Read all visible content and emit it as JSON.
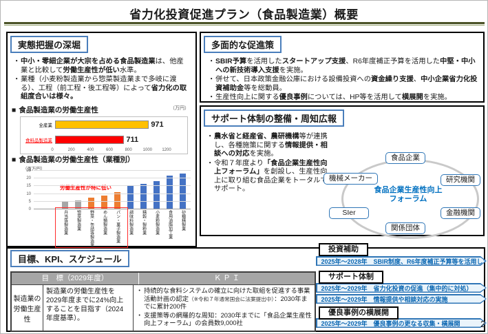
{
  "title": "省力化投資促進プラン（食品製造業）概要",
  "page_number": "2",
  "jittai": {
    "header": "実態把握の深堀",
    "bullets": [
      [
        {
          "t": "中小・零細企業が大宗を占める食品製造業",
          "b": 1
        },
        {
          "t": "は、他産業と比較して"
        },
        {
          "t": "労働生産性が低い",
          "b": 1
        },
        {
          "t": "水準。"
        }
      ],
      [
        {
          "t": "業種（小麦粉製造業から惣菜製造業まで多岐に渡る）、工程（前工程・後工程等）によって"
        },
        {
          "t": "省力化の取組度合いは様々。",
          "b": 1
        }
      ]
    ]
  },
  "sokushin": {
    "header": "多面的な促進策",
    "bullets": [
      [
        {
          "t": "SBIR予算",
          "b": 1
        },
        {
          "t": "を活用した"
        },
        {
          "t": "スタートアップ支援",
          "b": 1
        },
        {
          "t": "、R6年度補正予算を活用した"
        },
        {
          "t": "中堅・中小への新技術導入支援",
          "b": 1
        },
        {
          "t": "を実施。"
        }
      ],
      [
        {
          "t": "併せて、日本政策金融公庫における設備投資への"
        },
        {
          "t": "資金繰り支援",
          "b": 1
        },
        {
          "t": "、"
        },
        {
          "t": "中小企業省力化投資補助金",
          "b": 1
        },
        {
          "t": "等を総動員。"
        }
      ],
      [
        {
          "t": "生産性向上に関する"
        },
        {
          "t": "優良事例",
          "b": 1
        },
        {
          "t": "については、HP等を活用して"
        },
        {
          "t": "横展開",
          "b": 1
        },
        {
          "t": "を実施。"
        }
      ]
    ]
  },
  "support": {
    "header": "サポート体制の整備・周知広報",
    "bullets": [
      [
        {
          "t": "農水省と経産省、農研機構",
          "b": 1
        },
        {
          "t": "等が連携し、各種施策に関する"
        },
        {
          "t": "情報提供・相談への対応",
          "b": 1
        },
        {
          "t": "を実施。"
        }
      ],
      [
        {
          "t": "令和７年度より"
        },
        {
          "t": "「食品企業生産性向上フォーラム」",
          "b": 1
        },
        {
          "t": "を創設し、生産性向上に取り組む食品企業をトータルでサポート。"
        }
      ]
    ],
    "forum": {
      "center_line1": "食品企業生産性向上",
      "center_line2": "フォーラム",
      "nodes": [
        "食品企業",
        "研究機関",
        "金融機関",
        "関係団体",
        "SIer",
        "機械メーカー"
      ]
    }
  },
  "goal": {
    "header": "目標、KPI、スケジュール",
    "table": {
      "col1_header": "目　標（2029年度）",
      "col2_header": "Ｋ Ｐ Ｉ",
      "row_label": "製造業の労働生産性",
      "row_goal": "製造業の労働生産性を2029年度までに24%向上することを目指す（2024年度基準）。",
      "kpi_bullets": [
        [
          {
            "t": "持続的な食料システムの確立に向けた取組を促進する事業活動計画の認定"
          },
          {
            "t": "（※令和７年通常国会に法案提出中）",
            "s": 1
          },
          {
            "t": "：2030年までに累計200件"
          }
        ],
        [
          {
            "t": "支援策等の網羅的な周知：2030年までに「食品企業生産性向上フォーラム」の会員数9,000社"
          }
        ]
      ]
    }
  },
  "timeline": {
    "groups": [
      {
        "label": "投資補助",
        "bars": [
          "2025年～2028年　SBIR制度、R6年度補正予算等を活用した支援"
        ]
      },
      {
        "label": "サポート体制",
        "bars": [
          "2025年～2029年　省力化投資の促進（集中的に対処）",
          "2025年～2029年　情報提供や相談対応の実施"
        ]
      },
      {
        "label": "優良事例の横展開",
        "bars": [
          "2025年～2029年　優良事例の更なる収集・横展開"
        ]
      }
    ]
  },
  "chart_data": [
    {
      "type": "bar",
      "orientation": "horizontal",
      "title": "食品製造業の労働生産性",
      "unit": "（万円）",
      "categories": [
        "全産業",
        "食料品製造業"
      ],
      "category_styles": [
        {
          "color": "#000000",
          "underline": false
        },
        {
          "color": "#ff0000",
          "underline": true
        }
      ],
      "values": [
        971,
        711
      ],
      "colors": [
        "#FFC000",
        "#FF0000"
      ],
      "xlim": [
        0,
        1200
      ],
      "xticks": [
        0,
        200,
        400,
        600,
        800,
        1000,
        1200
      ],
      "grid": false,
      "value_labels": true
    },
    {
      "type": "bar",
      "orientation": "vertical",
      "title": "食品製造業の労働生産性（業種別）",
      "unit": "（百万円）",
      "categories": [
        "弁当等製造業",
        "惣菜製造業",
        "野菜・缶詰等製造業",
        "めん類製造業",
        "パン・菓子製造業",
        "調味料製造業",
        "精穀・製粉業",
        "小麦粉製造業",
        "食用油脂加工業",
        "砂糖精製業"
      ],
      "values": [
        5.5,
        6,
        7.5,
        9,
        11,
        15.5,
        16.5,
        18.5,
        22,
        23
      ],
      "colors": [
        "#A6A6A6",
        "#A6A6A6",
        "#ED7D31",
        "#ED7D31",
        "#ED7D31",
        "#4472C4",
        "#4472C4",
        "#4472C4",
        "#4472C4",
        "#4472C4"
      ],
      "ylim": [
        0,
        25
      ],
      "yticks": [
        0,
        5,
        10,
        15,
        20,
        25
      ],
      "grid": true,
      "annotation": "労働生産性が特に低い",
      "highlight_box_category_range": [
        0,
        4
      ]
    }
  ],
  "colors": {
    "accent_blue": "#4472C4",
    "banner_border": "#2E75B6",
    "banner_text": "#0A66B2",
    "highlight_red": "#FF0000",
    "bar_gold": "#FFC000",
    "bar_orange": "#ED7D31",
    "bar_gray": "#A6A6A6",
    "table_header_gray": "#A6A6A6",
    "title_rule_olive": "#4A5226"
  }
}
